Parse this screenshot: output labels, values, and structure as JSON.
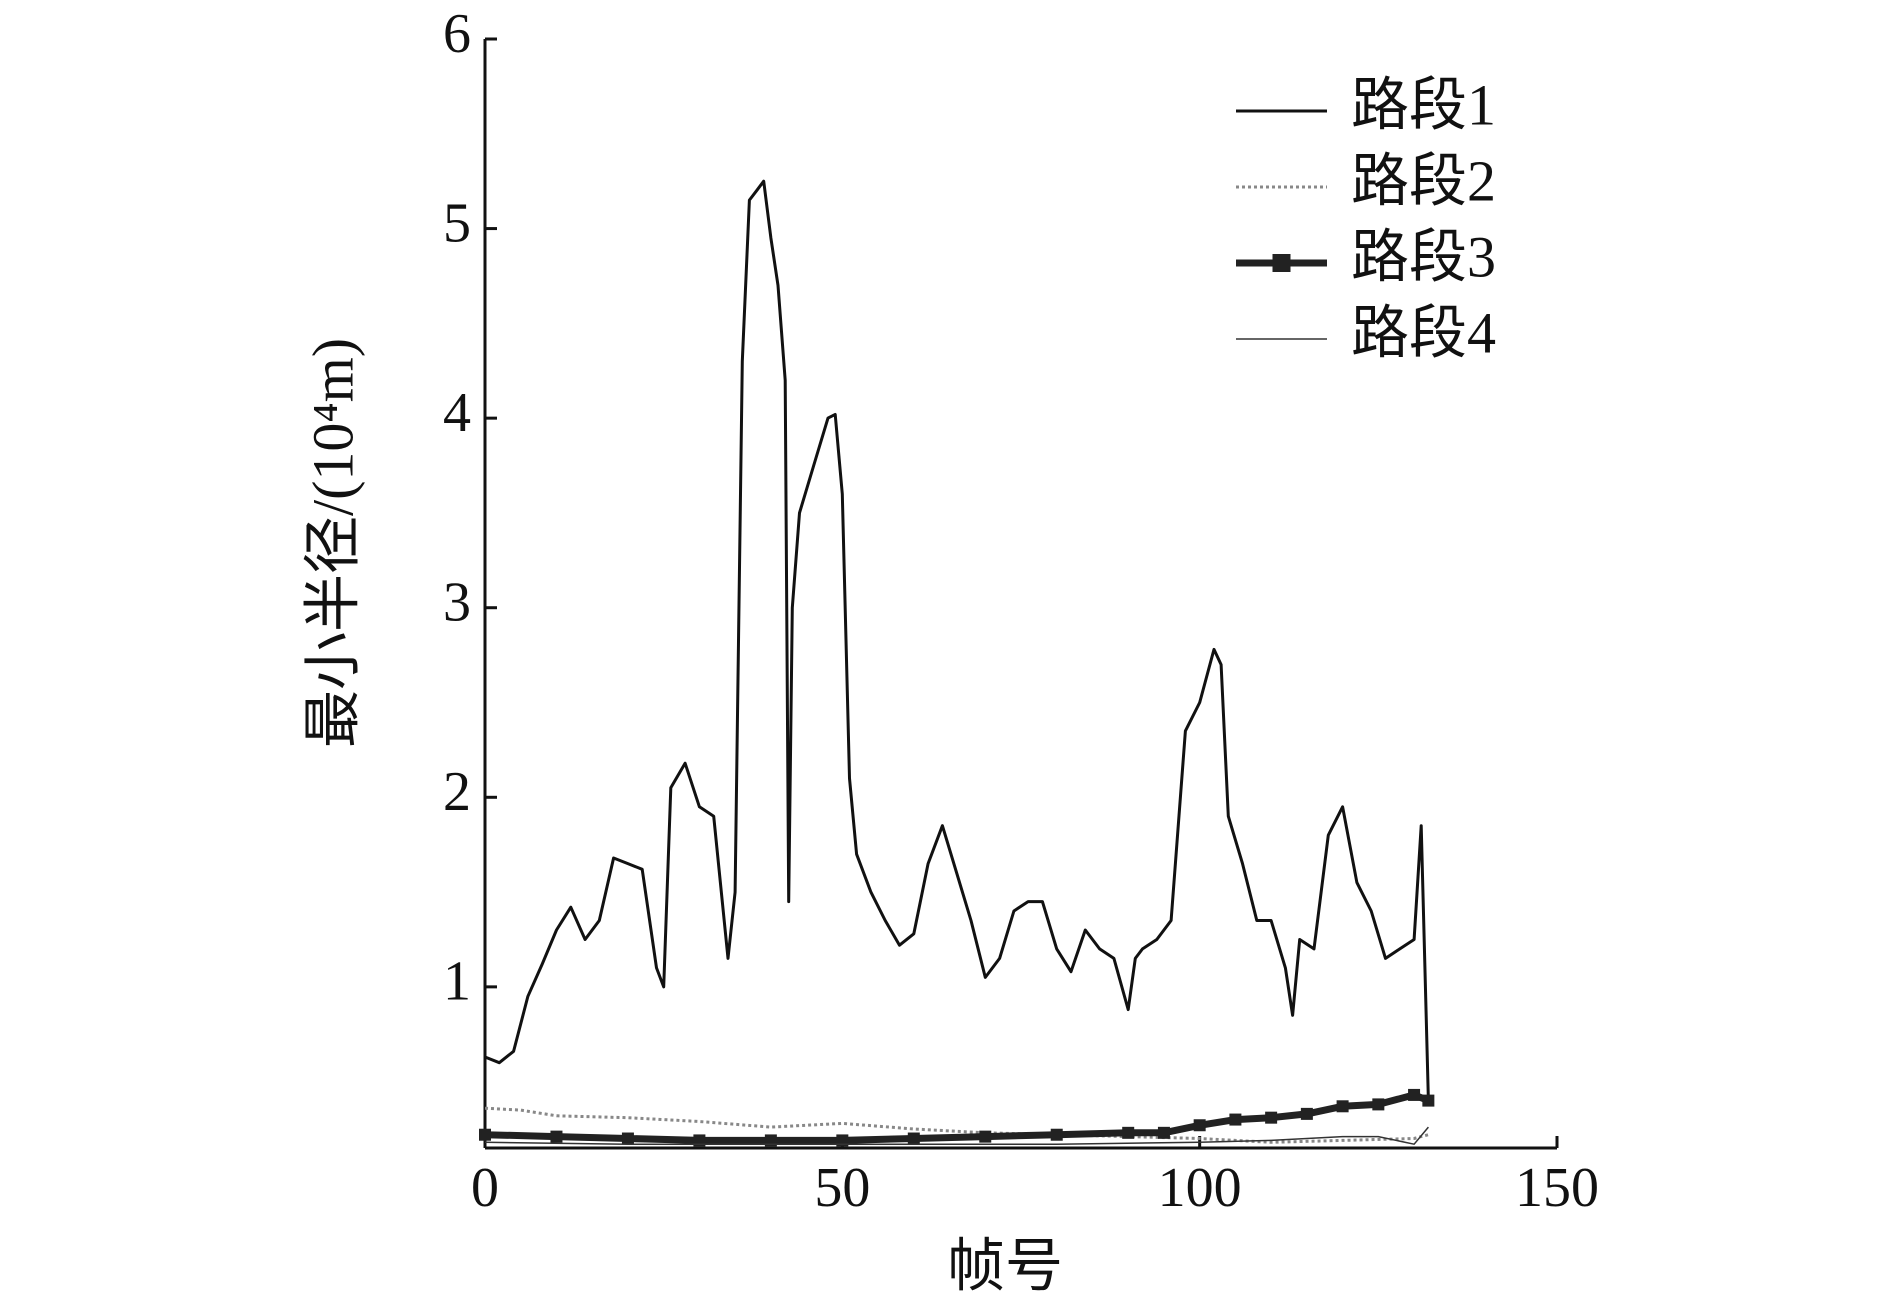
{
  "chart_data": {
    "type": "line",
    "xlabel": "帧号",
    "ylabel": "最小半径/(10⁴m)",
    "xlim": [
      0,
      150
    ],
    "xticks": [
      0,
      50,
      100,
      150
    ],
    "ylim": [
      0.15,
      6
    ],
    "yticks": [
      1,
      2,
      3,
      4,
      5,
      6
    ],
    "legend": "upper right",
    "x": [
      0,
      2,
      4,
      6,
      8,
      10,
      12,
      14,
      16,
      18,
      20,
      22,
      24,
      25,
      26,
      28,
      30,
      32,
      34,
      35,
      36,
      37,
      38,
      39,
      40,
      41,
      42,
      42.5,
      43,
      44,
      46,
      48,
      49,
      50,
      51,
      52,
      54,
      56,
      58,
      60,
      62,
      64,
      66,
      68,
      70,
      72,
      74,
      76,
      78,
      80,
      82,
      84,
      86,
      88,
      90,
      91,
      92,
      94,
      96,
      98,
      100,
      102,
      103,
      104,
      106,
      108,
      110,
      112,
      113,
      114,
      116,
      118,
      120,
      122,
      124,
      126,
      128,
      130,
      131,
      132
    ],
    "series": [
      {
        "name": "路段1",
        "color": "#111111",
        "line_style": "solid",
        "width": 3,
        "values": [
          0.63,
          0.6,
          0.66,
          0.95,
          1.12,
          1.3,
          1.42,
          1.25,
          1.35,
          1.68,
          1.65,
          1.62,
          1.1,
          1.0,
          2.05,
          2.18,
          1.95,
          1.9,
          1.15,
          1.5,
          4.3,
          5.15,
          5.2,
          5.25,
          4.95,
          4.7,
          4.2,
          1.45,
          3.0,
          3.5,
          3.75,
          4.0,
          4.02,
          3.6,
          2.1,
          1.7,
          1.5,
          1.35,
          1.22,
          1.28,
          1.65,
          1.85,
          1.6,
          1.35,
          1.05,
          1.15,
          1.4,
          1.45,
          1.45,
          1.2,
          1.08,
          1.3,
          1.2,
          1.15,
          0.88,
          1.15,
          1.2,
          1.25,
          1.35,
          2.35,
          2.5,
          2.78,
          2.7,
          1.9,
          1.65,
          1.35,
          1.35,
          1.1,
          0.85,
          1.25,
          1.2,
          1.8,
          1.95,
          1.55,
          1.4,
          1.15,
          1.2,
          1.25,
          1.85,
          0.4
        ]
      },
      {
        "name": "路段2",
        "color": "#888888",
        "line_style": "dotted",
        "width": 3,
        "x": [
          0,
          5,
          10,
          20,
          30,
          40,
          50,
          60,
          70,
          80,
          90,
          100,
          110,
          120,
          130,
          132
        ],
        "values": [
          0.36,
          0.35,
          0.32,
          0.31,
          0.29,
          0.26,
          0.28,
          0.25,
          0.23,
          0.22,
          0.21,
          0.2,
          0.18,
          0.19,
          0.2,
          0.22
        ]
      },
      {
        "name": "路段3",
        "color": "#222222",
        "line_style": "solid",
        "width": 7,
        "marker": "square",
        "x": [
          0,
          10,
          20,
          30,
          40,
          50,
          60,
          70,
          80,
          90,
          95,
          100,
          105,
          110,
          115,
          120,
          125,
          130,
          132
        ],
        "values": [
          0.22,
          0.21,
          0.2,
          0.19,
          0.19,
          0.19,
          0.2,
          0.21,
          0.22,
          0.23,
          0.23,
          0.27,
          0.3,
          0.31,
          0.33,
          0.37,
          0.38,
          0.43,
          0.4
        ]
      },
      {
        "name": "路段4",
        "color": "#333333",
        "line_style": "solid",
        "width": 1.5,
        "x": [
          0,
          20,
          40,
          60,
          80,
          100,
          110,
          120,
          125,
          130,
          132
        ],
        "values": [
          0.18,
          0.17,
          0.17,
          0.17,
          0.17,
          0.18,
          0.19,
          0.21,
          0.21,
          0.17,
          0.26
        ]
      }
    ]
  }
}
